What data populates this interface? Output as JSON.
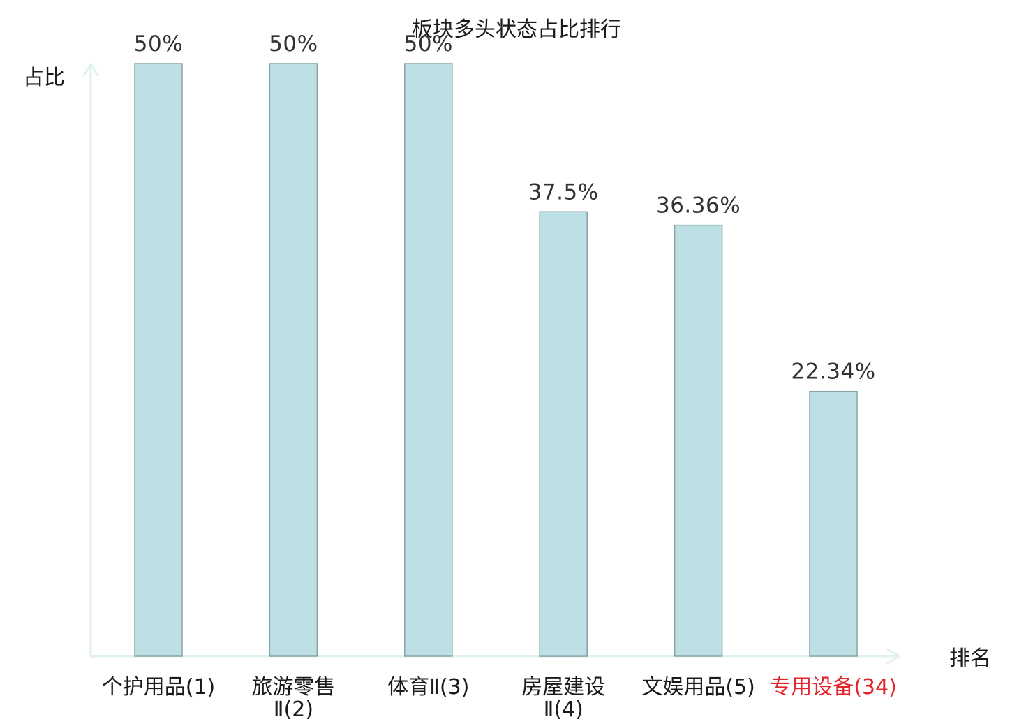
{
  "chart_data": {
    "type": "bar",
    "title": "板块多头状态占比排行",
    "ylabel": "占比",
    "xlabel": "排名",
    "ylim": [
      0,
      50
    ],
    "categories": [
      [
        "个护用品",
        "(1)"
      ],
      [
        "旅游零售",
        "Ⅱ(2)"
      ],
      [
        "体育",
        "Ⅱ(3)"
      ],
      [
        "房屋建设",
        "Ⅱ(4)"
      ],
      [
        "文娱用品",
        "(5)"
      ],
      [
        "专用设备",
        "(34)"
      ]
    ],
    "category_labels": [
      [
        "个护用品(1)"
      ],
      [
        "旅游零售",
        "Ⅱ(2)"
      ],
      [
        "体育Ⅱ(3)"
      ],
      [
        "房屋建设",
        "Ⅱ(4)"
      ],
      [
        "文娱用品(5)"
      ],
      [
        "专用设备(34)"
      ]
    ],
    "values": [
      50,
      50,
      50,
      37.5,
      36.36,
      22.34
    ],
    "value_labels": [
      "50%",
      "50%",
      "50%",
      "37.5%",
      "36.36%",
      "22.34%"
    ],
    "highlight_index": 5,
    "grid": false,
    "colors": {
      "bar_fill": "#bce0e3",
      "bar_stroke": "#86a4a7",
      "axis": "#dff2ef",
      "highlight_text": "#e3242b",
      "text": "#1a1a1a"
    }
  }
}
